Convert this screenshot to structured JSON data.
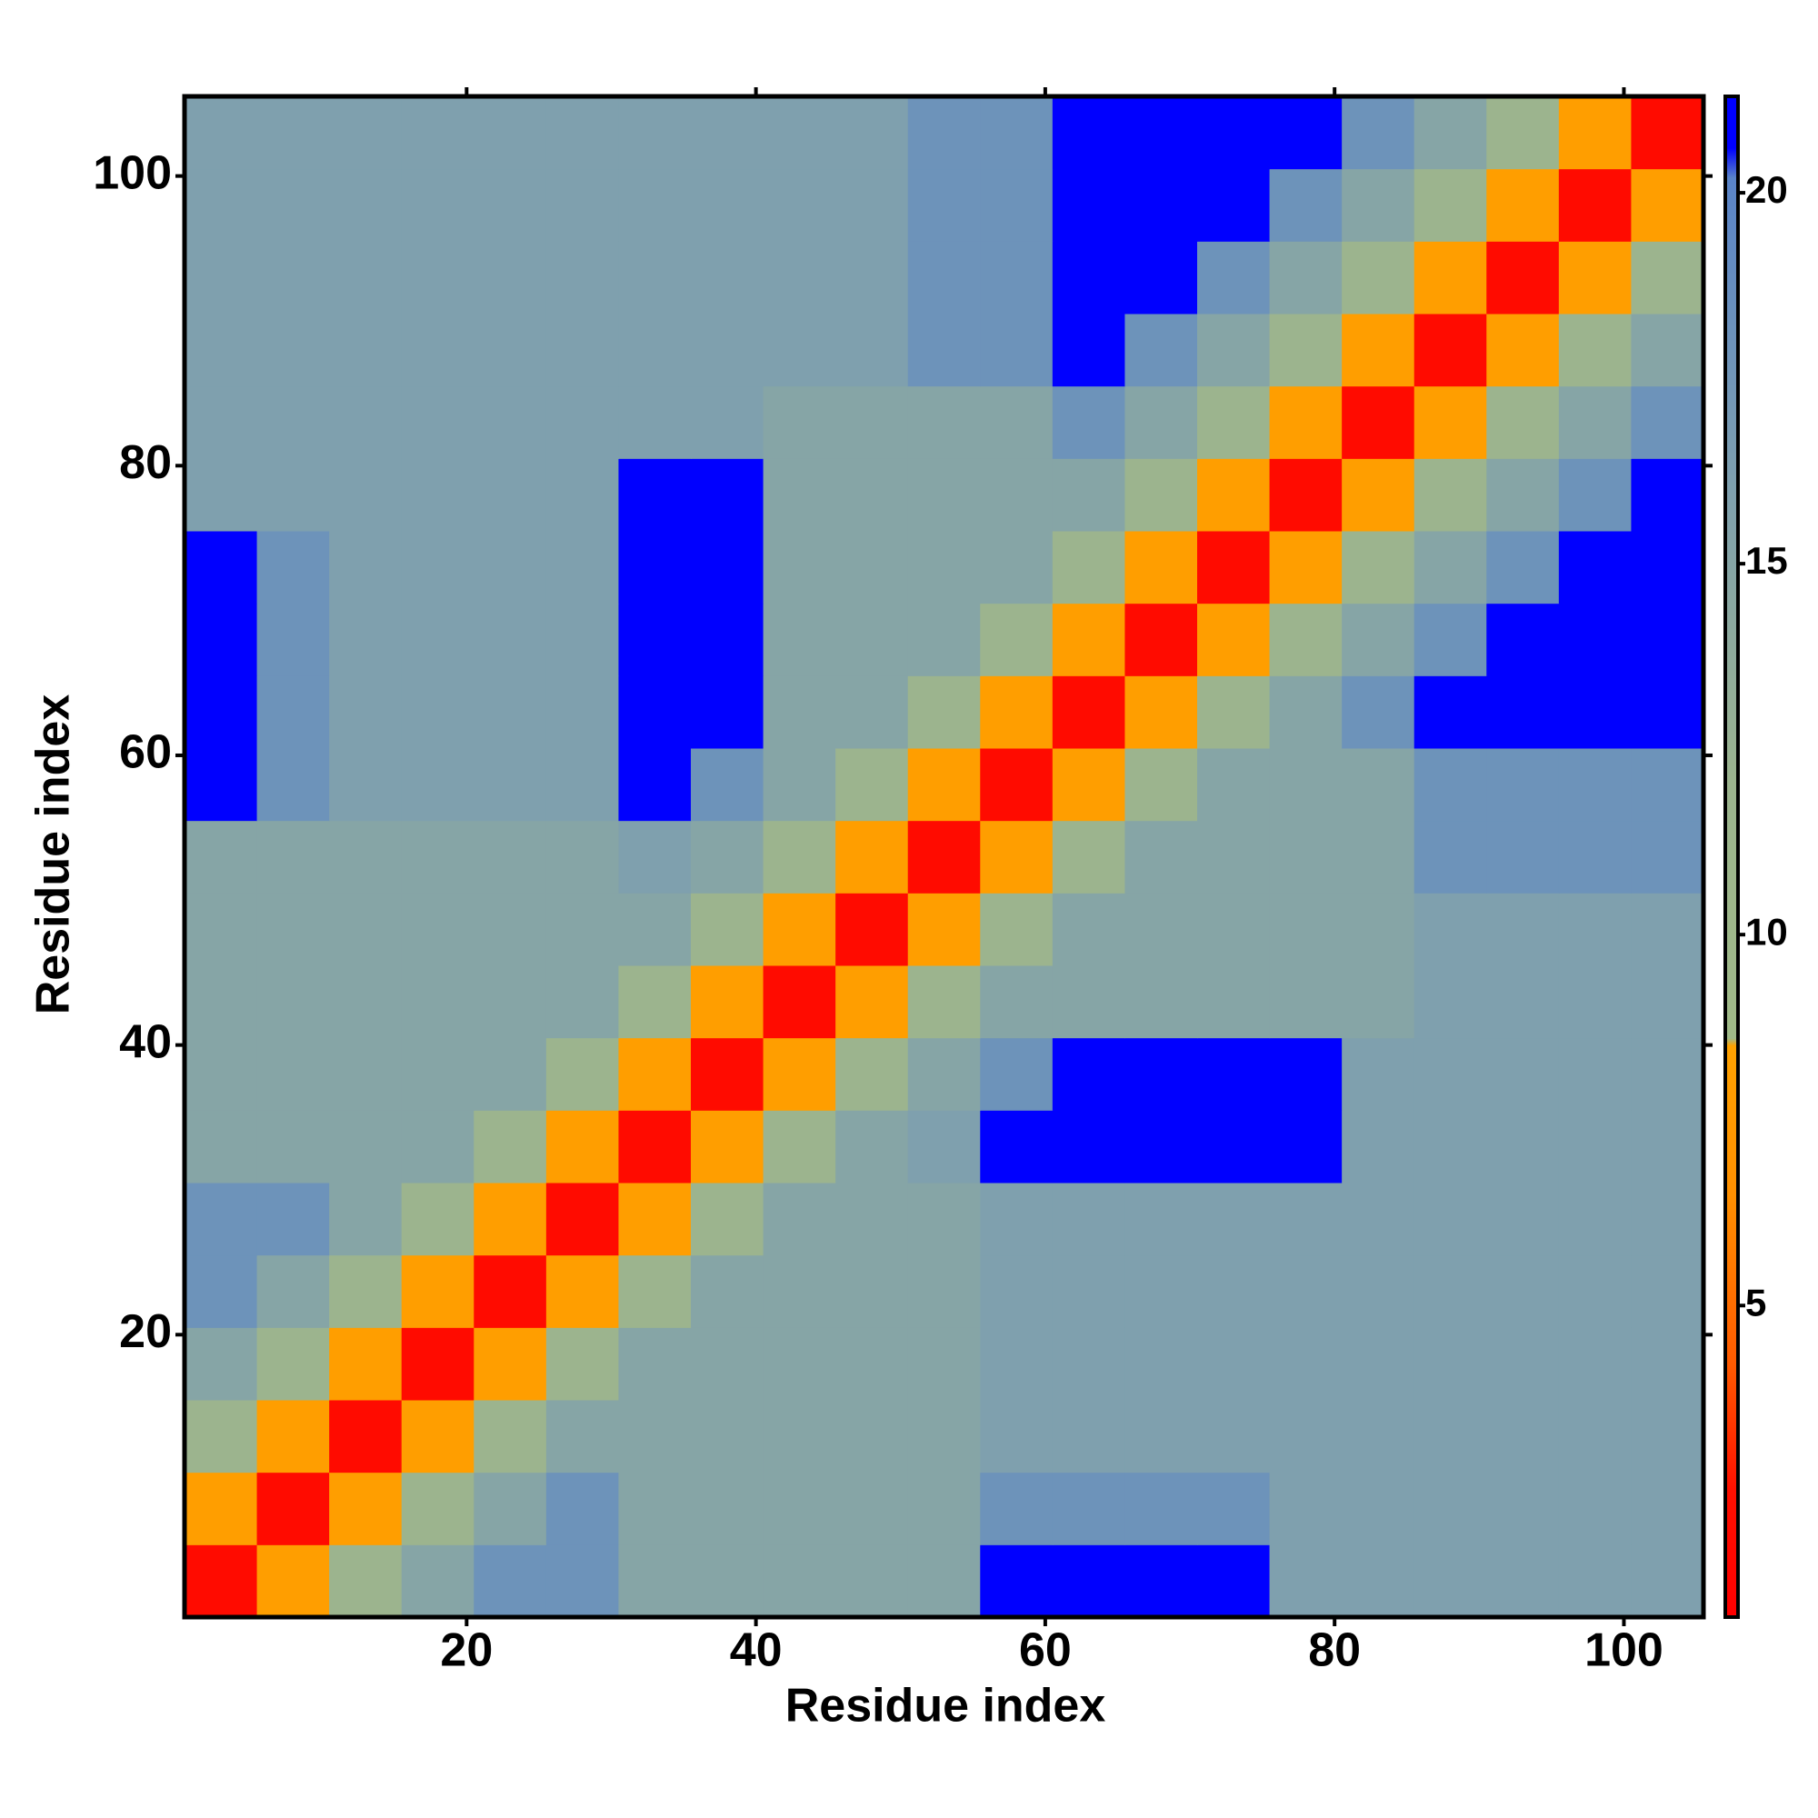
{
  "chart_data": {
    "type": "heatmap",
    "xlabel": "Residue index",
    "ylabel": "Residue index",
    "xlim": [
      0.5,
      105.5
    ],
    "ylim": [
      0.5,
      105.5
    ],
    "xticks": [
      20,
      40,
      60,
      80,
      100
    ],
    "yticks": [
      20,
      40,
      60,
      80,
      100
    ],
    "xbins": [
      0.5,
      5.5,
      10.5,
      15.5,
      20.5,
      25.5,
      30.5,
      35.5,
      40.5,
      45.5,
      50.5,
      55.5,
      60.5,
      65.5,
      70.5,
      75.5,
      80.5,
      85.5,
      90.5,
      95.5,
      100.5,
      105.5
    ],
    "ybins": [
      0.5,
      5.5,
      10.5,
      15.5,
      20.5,
      25.5,
      30.5,
      35.5,
      40.5,
      45.5,
      50.5,
      55.5,
      60.5,
      65.5,
      70.5,
      75.5,
      80.5,
      85.5,
      90.5,
      95.5,
      100.5,
      105.5
    ],
    "clim": [
      0.8,
      21.3
    ],
    "cticks": [
      5,
      10,
      15,
      20
    ],
    "colorscale": [
      {
        "value": 0.8,
        "color": "#ff0000"
      },
      {
        "value": 2.5,
        "color": "#ff1000"
      },
      {
        "value": 4.2,
        "color": "#ff5a00"
      },
      {
        "value": 6.5,
        "color": "#ff9000"
      },
      {
        "value": 8.5,
        "color": "#ffa200"
      },
      {
        "value": 8.6,
        "color": "#a0ba88"
      },
      {
        "value": 12,
        "color": "#9cb48e"
      },
      {
        "value": 16,
        "color": "#7fa0ae"
      },
      {
        "value": 20.2,
        "color": "#5a84c8"
      },
      {
        "value": 20.6,
        "color": "#0000ff"
      },
      {
        "value": 21.3,
        "color": "#0000ff"
      }
    ],
    "z": [
      [
        2,
        8,
        12,
        15,
        18,
        18,
        15,
        15,
        15,
        15,
        15,
        21,
        21,
        21,
        21,
        16,
        16,
        16,
        16,
        16,
        16
      ],
      [
        8,
        2,
        8,
        12,
        15,
        18,
        15,
        15,
        15,
        15,
        15,
        18,
        18,
        18,
        18,
        16,
        16,
        16,
        16,
        16,
        16
      ],
      [
        12,
        8,
        2,
        8,
        12,
        15,
        15,
        15,
        15,
        15,
        15,
        16,
        16,
        16,
        16,
        16,
        16,
        16,
        16,
        16,
        16
      ],
      [
        15,
        12,
        8,
        2,
        8,
        12,
        15,
        15,
        15,
        15,
        15,
        16,
        16,
        16,
        16,
        16,
        16,
        16,
        16,
        16,
        16
      ],
      [
        18,
        15,
        12,
        8,
        2,
        8,
        12,
        15,
        15,
        15,
        15,
        16,
        16,
        16,
        16,
        16,
        16,
        16,
        16,
        16,
        16
      ],
      [
        18,
        18,
        15,
        12,
        8,
        2,
        8,
        12,
        15,
        15,
        15,
        16,
        16,
        16,
        16,
        16,
        16,
        16,
        16,
        16,
        16
      ],
      [
        15,
        15,
        15,
        15,
        12,
        8,
        2,
        8,
        12,
        15,
        16,
        21,
        21,
        21,
        21,
        21,
        16,
        16,
        16,
        16,
        16
      ],
      [
        15,
        15,
        15,
        15,
        15,
        12,
        8,
        2,
        8,
        12,
        15,
        18,
        21,
        21,
        21,
        21,
        16,
        16,
        16,
        16,
        16
      ],
      [
        15,
        15,
        15,
        15,
        15,
        15,
        12,
        8,
        2,
        8,
        12,
        15,
        15,
        15,
        15,
        15,
        15,
        16,
        16,
        16,
        16
      ],
      [
        15,
        15,
        15,
        15,
        15,
        15,
        15,
        12,
        8,
        2,
        8,
        12,
        15,
        15,
        15,
        15,
        15,
        16,
        16,
        16,
        16
      ],
      [
        15,
        15,
        15,
        15,
        15,
        15,
        16,
        15,
        12,
        8,
        2,
        8,
        12,
        15,
        15,
        15,
        15,
        18,
        18,
        18,
        18
      ],
      [
        21,
        18,
        16,
        16,
        16,
        16,
        21,
        18,
        15,
        12,
        8,
        2,
        8,
        12,
        15,
        15,
        15,
        18,
        18,
        18,
        18
      ],
      [
        21,
        18,
        16,
        16,
        16,
        16,
        21,
        21,
        15,
        15,
        12,
        8,
        2,
        8,
        12,
        15,
        18,
        21,
        21,
        21,
        21
      ],
      [
        21,
        18,
        16,
        16,
        16,
        16,
        21,
        21,
        15,
        15,
        15,
        12,
        8,
        2,
        8,
        12,
        15,
        18,
        21,
        21,
        21
      ],
      [
        21,
        18,
        16,
        16,
        16,
        16,
        21,
        21,
        15,
        15,
        15,
        15,
        12,
        8,
        2,
        8,
        12,
        15,
        18,
        21,
        21
      ],
      [
        16,
        16,
        16,
        16,
        16,
        16,
        21,
        21,
        15,
        15,
        15,
        15,
        15,
        12,
        8,
        2,
        8,
        12,
        15,
        18,
        21
      ],
      [
        16,
        16,
        16,
        16,
        16,
        16,
        16,
        16,
        15,
        15,
        15,
        15,
        18,
        15,
        12,
        8,
        2,
        8,
        12,
        15,
        18
      ],
      [
        16,
        16,
        16,
        16,
        16,
        16,
        16,
        16,
        16,
        16,
        18,
        18,
        21,
        18,
        15,
        12,
        8,
        2,
        8,
        12,
        15
      ],
      [
        16,
        16,
        16,
        16,
        16,
        16,
        16,
        16,
        16,
        16,
        18,
        18,
        21,
        21,
        18,
        15,
        12,
        8,
        2,
        8,
        12
      ],
      [
        16,
        16,
        16,
        16,
        16,
        16,
        16,
        16,
        16,
        16,
        18,
        18,
        21,
        21,
        21,
        18,
        15,
        12,
        8,
        2,
        8
      ],
      [
        16,
        16,
        16,
        16,
        16,
        16,
        16,
        16,
        16,
        16,
        18,
        18,
        21,
        21,
        21,
        21,
        18,
        15,
        12,
        8,
        2
      ]
    ]
  }
}
